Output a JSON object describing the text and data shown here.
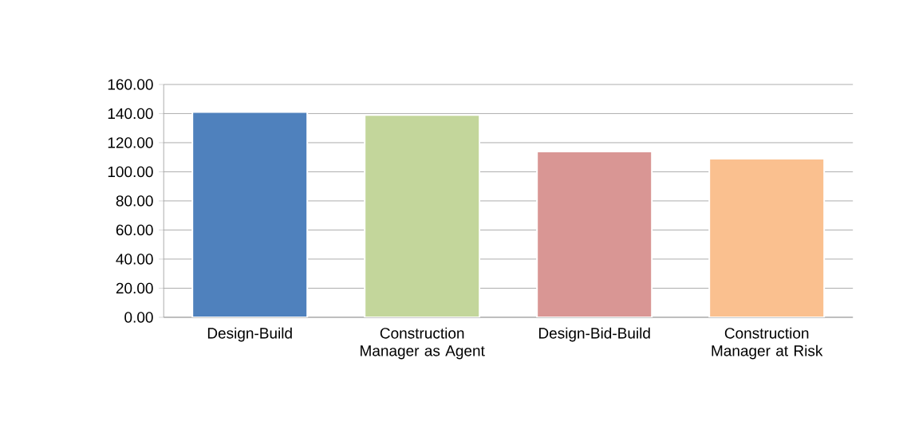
{
  "chart_data": {
    "type": "bar",
    "categories": [
      "Design-Build",
      "Construction Manager as Agent",
      "Design-Bid-Build",
      "Construction Manager at Risk"
    ],
    "values": [
      141,
      139,
      114,
      109
    ],
    "colors": [
      "#4f81bd",
      "#c3d69b",
      "#d99694",
      "#fac08f"
    ],
    "ylim": [
      0,
      160
    ],
    "yticks": [
      {
        "value": 0,
        "label": "0.00"
      },
      {
        "value": 20,
        "label": "20.00"
      },
      {
        "value": 40,
        "label": "40.00"
      },
      {
        "value": 60,
        "label": "60.00"
      },
      {
        "value": 80,
        "label": "80.00"
      },
      {
        "value": 100,
        "label": "100.00"
      },
      {
        "value": 120,
        "label": "120.00"
      },
      {
        "value": 140,
        "label": "140.00"
      },
      {
        "value": 160,
        "label": "160.00"
      }
    ],
    "grid": "y"
  }
}
